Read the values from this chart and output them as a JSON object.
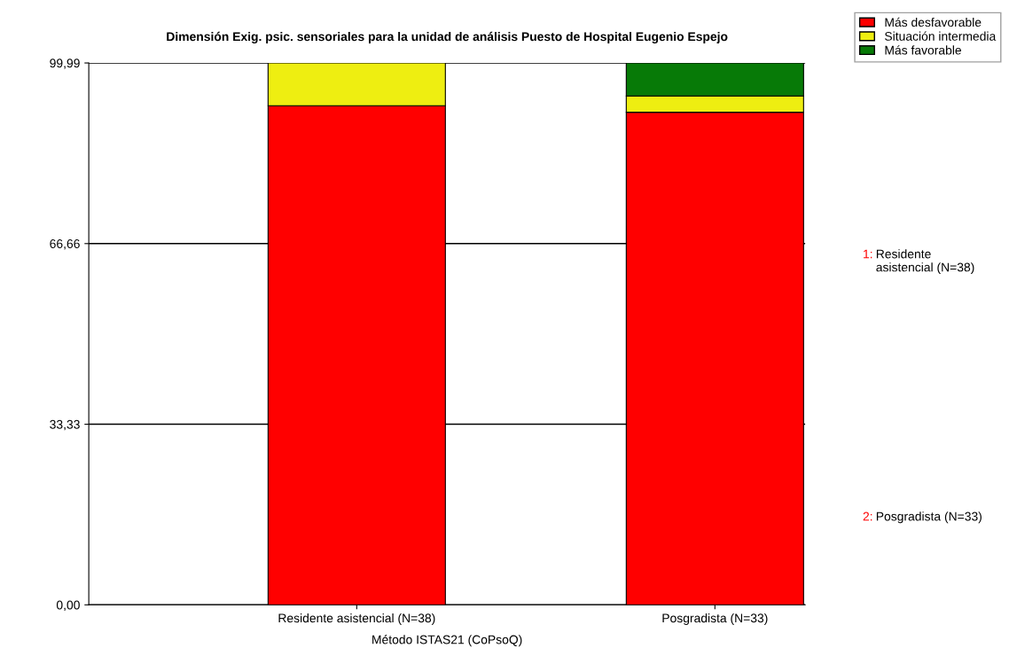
{
  "chart_data": {
    "type": "bar",
    "title": "Dimensión Exig. psic. sensoriales para la unidad de análisis Puesto de Hospital Eugenio Espejo",
    "xlabel": "Método ISTAS21 (CoPsoQ)",
    "categories": [
      "Residente asistencial (N=38)",
      "Posgradista (N=33)"
    ],
    "stacked": true,
    "series": [
      {
        "name": "Más desfavorable",
        "color": "#ff0000",
        "values": [
          92.1,
          90.9
        ]
      },
      {
        "name": "Situación intermedia",
        "color": "#eeee11",
        "values": [
          7.9,
          3.0
        ]
      },
      {
        "name": "Más favorable",
        "color": "#077a07",
        "values": [
          null,
          6.1
        ]
      }
    ],
    "ylim": [
      0,
      99.99
    ],
    "yticks": [
      {
        "value": 0,
        "label": "0,00"
      },
      {
        "value": 33.33,
        "label": "33,33"
      },
      {
        "value": 66.66,
        "label": "66,66"
      },
      {
        "value": 99.99,
        "label": "99,99"
      }
    ],
    "grid": "y",
    "legend": "top right",
    "annotations": [
      "1:Residente asistencial (N=38)",
      "2:Posgradista (N=33)"
    ]
  }
}
